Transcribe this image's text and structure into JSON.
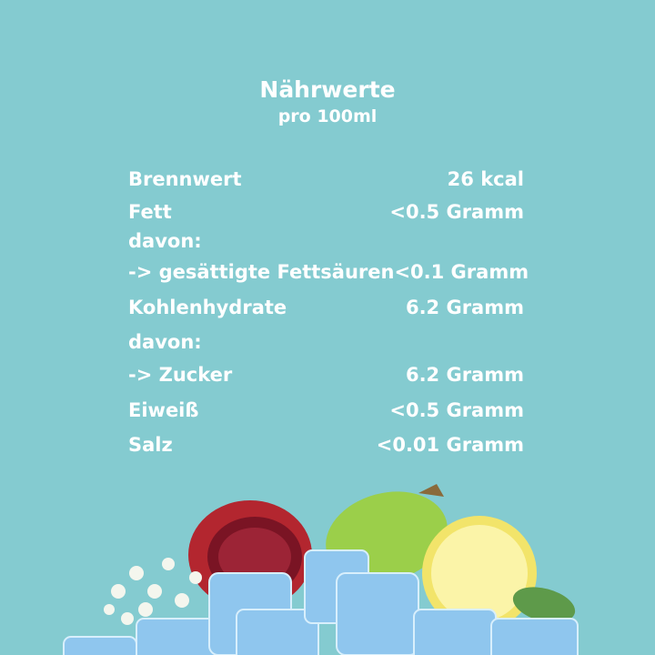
{
  "header": {
    "title": "Nährwerte",
    "subtitle": "pro 100ml"
  },
  "rows": [
    {
      "label": "Brennwert",
      "value": "26 kcal"
    },
    {
      "label": "Fett",
      "value": "<0.5 Gramm"
    },
    {
      "label": "davon:",
      "value": ""
    },
    {
      "label": "-> gesättigte Fettsäuren",
      "value": "<0.1 Gramm"
    },
    {
      "label": "Kohlenhydrate",
      "value": "6.2 Gramm"
    },
    {
      "label": "davon:",
      "value": ""
    },
    {
      "label": "-> Zucker",
      "value": "6.2 Gramm"
    },
    {
      "label": "Eiweiß",
      "value": "<0.5 Gramm"
    },
    {
      "label": "Salz",
      "value": "<0.01 Gramm"
    }
  ],
  "colors": {
    "background": "#84cbd0",
    "text": "#ffffff"
  },
  "illustration": [
    "pomegranate",
    "prickly-pear",
    "lemon",
    "elderflower",
    "ice-cubes",
    "mint-leaf"
  ]
}
